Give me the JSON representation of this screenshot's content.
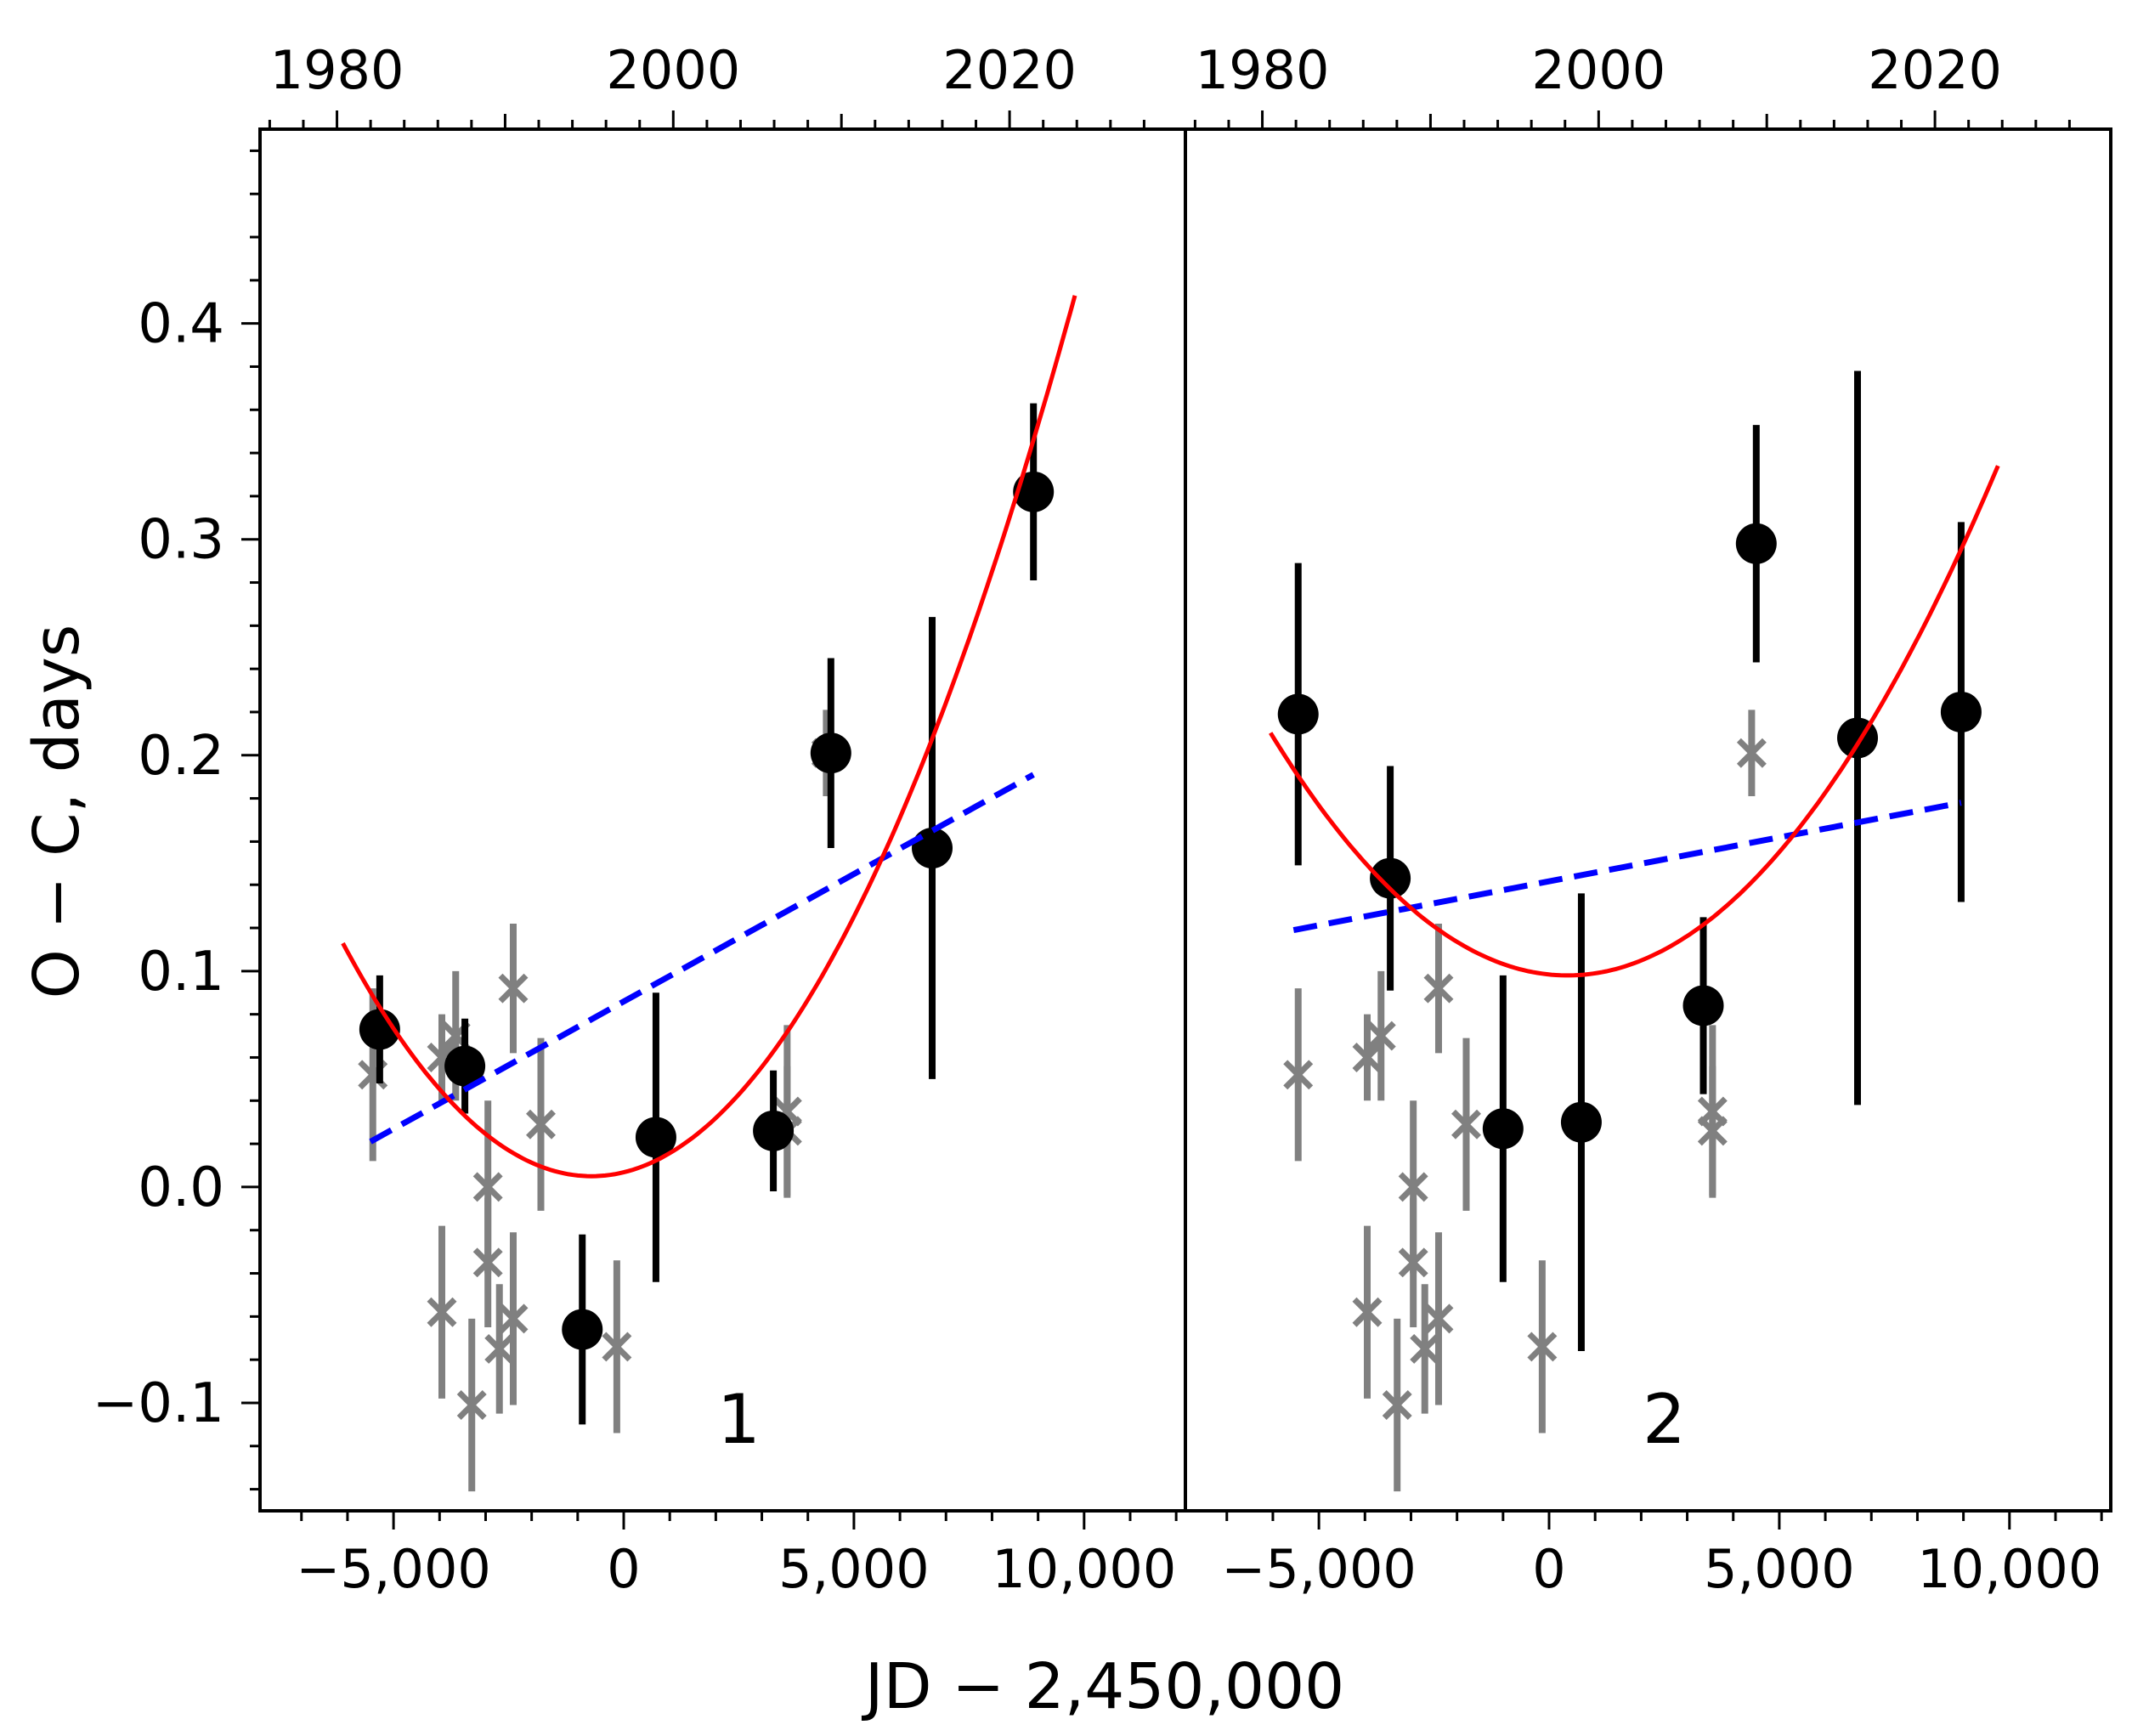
{
  "figure": {
    "ylabel": "O − C, days",
    "xlabel": "JD − 2,450,000"
  },
  "chart_data": [
    {
      "type": "scatter",
      "panel_label": "1",
      "xlim": [
        -7900,
        12200
      ],
      "ylim": [
        -0.15,
        0.49
      ],
      "top_axis": {
        "ticks": [
          1980,
          2000,
          2020
        ],
        "labels": [
          "1980",
          "2000",
          "2020"
        ]
      },
      "x_ticks": [
        -5000,
        0,
        5000,
        10000
      ],
      "x_tick_labels": [
        "−5,000",
        "0",
        "5,000",
        "10,000"
      ],
      "y_ticks": [
        -0.1,
        0.0,
        0.1,
        0.2,
        0.3,
        0.4
      ],
      "y_tick_labels": [
        "−0.1",
        "0.0",
        "0.1",
        "0.2",
        "0.3",
        "0.4"
      ],
      "series": [
        {
          "name": "black points",
          "color": "#000000",
          "marker": "circle",
          "points": [
            {
              "x": -5300,
              "y": 0.073,
              "err": 0.025
            },
            {
              "x": -3450,
              "y": 0.056,
              "err": 0.022
            },
            {
              "x": -900,
              "y": -0.066,
              "err": 0.044
            },
            {
              "x": 700,
              "y": 0.023,
              "err": 0.067
            },
            {
              "x": 3250,
              "y": 0.026,
              "err": 0.028
            },
            {
              "x": 4500,
              "y": 0.201,
              "err": 0.044
            },
            {
              "x": 6700,
              "y": 0.157,
              "err": 0.107
            },
            {
              "x": 8900,
              "y": 0.322,
              "err": 0.041
            }
          ]
        },
        {
          "name": "grey crosses",
          "color": "#808080",
          "marker": "x",
          "points": [
            {
              "x": -5450,
              "y": 0.052,
              "err": 0.04
            },
            {
              "x": -3950,
              "y": -0.058,
              "err": 0.04
            },
            {
              "x": -3950,
              "y": 0.06,
              "err": 0.02
            },
            {
              "x": -3650,
              "y": 0.07,
              "err": 0.03
            },
            {
              "x": -3300,
              "y": -0.101,
              "err": 0.04
            },
            {
              "x": -2950,
              "y": 0.0,
              "err": 0.04
            },
            {
              "x": -2950,
              "y": -0.035,
              "err": 0.03
            },
            {
              "x": -2700,
              "y": -0.075,
              "err": 0.03
            },
            {
              "x": -2400,
              "y": -0.061,
              "err": 0.04
            },
            {
              "x": -2400,
              "y": 0.092,
              "err": 0.03
            },
            {
              "x": -1800,
              "y": 0.029,
              "err": 0.04
            },
            {
              "x": -150,
              "y": -0.074,
              "err": 0.04
            },
            {
              "x": 3550,
              "y": 0.026,
              "err": 0.03
            },
            {
              "x": 3550,
              "y": 0.035,
              "err": 0.04
            },
            {
              "x": 4400,
              "y": 0.201,
              "err": 0.02
            }
          ]
        }
      ],
      "quadratic_fit": {
        "color": "#ff0000",
        "a": 0.005,
        "x0": -700,
        "b": 3.7e-09,
        "x_start": -6100,
        "x_end": 9800
      },
      "linear_fit": {
        "color": "#0000ff",
        "x1": -5500,
        "y1": 0.021,
        "x2": 8900,
        "y2": 0.191
      }
    },
    {
      "type": "scatter",
      "panel_label": "2",
      "xlim": [
        -7900,
        12200
      ],
      "ylim": [
        -0.15,
        0.49
      ],
      "top_axis": {
        "ticks": [
          1980,
          2000,
          2020
        ],
        "labels": [
          "1980",
          "2000",
          "2020"
        ]
      },
      "x_ticks": [
        -5000,
        0,
        5000,
        10000
      ],
      "x_tick_labels": [
        "−5,000",
        "0",
        "5,000",
        "10,000"
      ],
      "series": [
        {
          "name": "black points",
          "color": "#000000",
          "marker": "circle",
          "points": [
            {
              "x": -5450,
              "y": 0.219,
              "err": 0.07
            },
            {
              "x": -3450,
              "y": 0.143,
              "err": 0.052
            },
            {
              "x": -1000,
              "y": 0.027,
              "err": 0.071
            },
            {
              "x": 700,
              "y": 0.03,
              "err": 0.106
            },
            {
              "x": 3350,
              "y": 0.084,
              "err": 0.041
            },
            {
              "x": 4500,
              "y": 0.298,
              "err": 0.055
            },
            {
              "x": 6700,
              "y": 0.208,
              "err": 0.17
            },
            {
              "x": 8950,
              "y": 0.22,
              "err": 0.088
            }
          ]
        },
        {
          "name": "grey crosses",
          "color": "#808080",
          "marker": "x",
          "points": [
            {
              "x": -5450,
              "y": 0.052,
              "err": 0.04
            },
            {
              "x": -3950,
              "y": -0.058,
              "err": 0.04
            },
            {
              "x": -3950,
              "y": 0.06,
              "err": 0.02
            },
            {
              "x": -3650,
              "y": 0.07,
              "err": 0.03
            },
            {
              "x": -3300,
              "y": -0.101,
              "err": 0.04
            },
            {
              "x": -2950,
              "y": 0.0,
              "err": 0.04
            },
            {
              "x": -2950,
              "y": -0.035,
              "err": 0.03
            },
            {
              "x": -2700,
              "y": -0.075,
              "err": 0.03
            },
            {
              "x": -2400,
              "y": -0.061,
              "err": 0.04
            },
            {
              "x": -2400,
              "y": 0.092,
              "err": 0.03
            },
            {
              "x": -1800,
              "y": 0.029,
              "err": 0.04
            },
            {
              "x": -150,
              "y": -0.074,
              "err": 0.04
            },
            {
              "x": 3550,
              "y": 0.026,
              "err": 0.03
            },
            {
              "x": 3550,
              "y": 0.035,
              "err": 0.04
            },
            {
              "x": 4400,
              "y": 0.201,
              "err": 0.02
            }
          ]
        }
      ],
      "quadratic_fit": {
        "color": "#ff0000",
        "a": 0.098,
        "x0": 400,
        "b": 2.7e-09,
        "x_start": -6050,
        "x_end": 9800
      },
      "linear_fit": {
        "color": "#0000ff",
        "x1": -5550,
        "y1": 0.119,
        "x2": 8950,
        "y2": 0.178
      }
    }
  ]
}
